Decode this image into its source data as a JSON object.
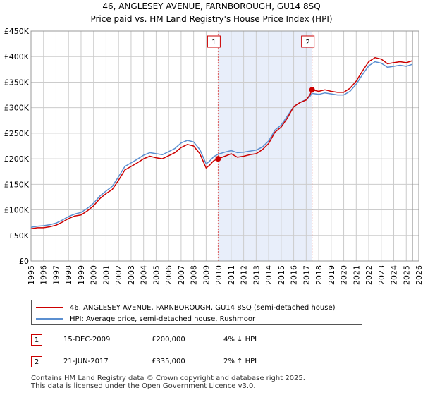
{
  "chart_data": {
    "type": "line",
    "title": "46, ANGLESEY AVENUE, FARNBOROUGH, GU14 8SQ",
    "subtitle": "Price paid vs. HM Land Registry's House Price Index (HPI)",
    "xlim": [
      1995,
      2026
    ],
    "ylim": [
      0,
      450000
    ],
    "x_ticks": [
      "1995",
      "1996",
      "1997",
      "1998",
      "1999",
      "2000",
      "2001",
      "2002",
      "2003",
      "2004",
      "2005",
      "2006",
      "2007",
      "2008",
      "2009",
      "2010",
      "2011",
      "2012",
      "2013",
      "2014",
      "2015",
      "2016",
      "2017",
      "2018",
      "2019",
      "2020",
      "2021",
      "2022",
      "2023",
      "2024",
      "2025",
      "2026"
    ],
    "y_ticks": [
      {
        "value": 0,
        "label": "£0"
      },
      {
        "value": 50000,
        "label": "£50K"
      },
      {
        "value": 100000,
        "label": "£100K"
      },
      {
        "value": 150000,
        "label": "£150K"
      },
      {
        "value": 200000,
        "label": "£200K"
      },
      {
        "value": 250000,
        "label": "£250K"
      },
      {
        "value": 300000,
        "label": "£300K"
      },
      {
        "value": 350000,
        "label": "£350K"
      },
      {
        "value": 400000,
        "label": "£400K"
      },
      {
        "value": 450000,
        "label": "£450K"
      }
    ],
    "grid": true,
    "shaded_span": [
      2009.96,
      2017.47
    ],
    "series": [
      {
        "name": "46, ANGLESEY AVENUE, FARNBOROUGH, GU14 8SQ (semi-detached house)",
        "color": "#cc0000",
        "x": [
          1995.0,
          1995.5,
          1996.0,
          1996.5,
          1997.0,
          1997.5,
          1998.0,
          1998.5,
          1999.0,
          1999.5,
          2000.0,
          2000.5,
          2001.0,
          2001.5,
          2002.0,
          2002.5,
          2003.0,
          2003.5,
          2004.0,
          2004.5,
          2005.0,
          2005.5,
          2006.0,
          2006.5,
          2007.0,
          2007.5,
          2008.0,
          2008.5,
          2009.0,
          2009.3,
          2009.6,
          2009.96,
          2010.5,
          2011.0,
          2011.5,
          2012.0,
          2012.5,
          2013.0,
          2013.5,
          2014.0,
          2014.5,
          2015.0,
          2015.5,
          2016.0,
          2016.5,
          2017.0,
          2017.3,
          2017.47,
          2018.0,
          2018.5,
          2019.0,
          2019.5,
          2020.0,
          2020.5,
          2021.0,
          2021.5,
          2022.0,
          2022.5,
          2023.0,
          2023.5,
          2024.0,
          2024.5,
          2025.0,
          2025.5
        ],
        "values": [
          63000,
          65000,
          65000,
          67000,
          70000,
          76000,
          83000,
          88000,
          90000,
          98000,
          108000,
          122000,
          132000,
          140000,
          158000,
          178000,
          185000,
          192000,
          200000,
          205000,
          202000,
          200000,
          206000,
          212000,
          222000,
          228000,
          225000,
          210000,
          182000,
          188000,
          196000,
          200000,
          205000,
          210000,
          203000,
          205000,
          208000,
          210000,
          218000,
          230000,
          252000,
          262000,
          280000,
          302000,
          310000,
          315000,
          325000,
          335000,
          332000,
          335000,
          332000,
          330000,
          330000,
          338000,
          352000,
          372000,
          390000,
          398000,
          395000,
          386000,
          388000,
          390000,
          388000,
          392000
        ]
      },
      {
        "name": "HPI: Average price, semi-detached house, Rushmoor",
        "color": "#5b8fd0",
        "x": [
          1995.0,
          1995.5,
          1996.0,
          1996.5,
          1997.0,
          1997.5,
          1998.0,
          1998.5,
          1999.0,
          1999.5,
          2000.0,
          2000.5,
          2001.0,
          2001.5,
          2002.0,
          2002.5,
          2003.0,
          2003.5,
          2004.0,
          2004.5,
          2005.0,
          2005.5,
          2006.0,
          2006.5,
          2007.0,
          2007.5,
          2008.0,
          2008.5,
          2009.0,
          2009.3,
          2009.6,
          2009.96,
          2010.5,
          2011.0,
          2011.5,
          2012.0,
          2012.5,
          2013.0,
          2013.5,
          2014.0,
          2014.5,
          2015.0,
          2015.5,
          2016.0,
          2016.5,
          2017.0,
          2017.3,
          2017.47,
          2018.0,
          2018.5,
          2019.0,
          2019.5,
          2020.0,
          2020.5,
          2021.0,
          2021.5,
          2022.0,
          2022.5,
          2023.0,
          2023.5,
          2024.0,
          2024.5,
          2025.0,
          2025.5
        ],
        "values": [
          66000,
          68000,
          69000,
          71000,
          74000,
          80000,
          87000,
          92000,
          95000,
          103000,
          113000,
          127000,
          137000,
          146000,
          165000,
          185000,
          192000,
          199000,
          207000,
          212000,
          210000,
          208000,
          214000,
          220000,
          231000,
          236000,
          233000,
          218000,
          190000,
          196000,
          204000,
          209000,
          213000,
          216000,
          212000,
          213000,
          215000,
          217000,
          223000,
          235000,
          256000,
          266000,
          284000,
          302000,
          310000,
          316000,
          322000,
          328000,
          326000,
          329000,
          327000,
          325000,
          325000,
          332000,
          346000,
          365000,
          382000,
          390000,
          387000,
          379000,
          381000,
          383000,
          381000,
          385000
        ]
      }
    ],
    "sales": [
      {
        "marker": "1",
        "x": 2009.96,
        "value": 200000
      },
      {
        "marker": "2",
        "x": 2017.47,
        "value": 335000
      }
    ],
    "end_marker_x": 2025.5
  },
  "legend": {
    "property": "46, ANGLESEY AVENUE, FARNBOROUGH, GU14 8SQ (semi-detached house)",
    "hpi": "HPI: Average price, semi-detached house, Rushmoor"
  },
  "sales_table": [
    {
      "marker": "1",
      "date": "15-DEC-2009",
      "price": "£200,000",
      "hpi": "4% ↓ HPI"
    },
    {
      "marker": "2",
      "date": "21-JUN-2017",
      "price": "£335,000",
      "hpi": "2% ↑ HPI"
    }
  ],
  "footer": {
    "line1": "Contains HM Land Registry data © Crown copyright and database right 2025.",
    "line2": "This data is licensed under the Open Government Licence v3.0."
  },
  "colors": {
    "property_line": "#cc0000",
    "hpi_line": "#5b8fd0",
    "shade": "#e8eefa",
    "vline": "#e06060",
    "grid": "#cccccc"
  }
}
